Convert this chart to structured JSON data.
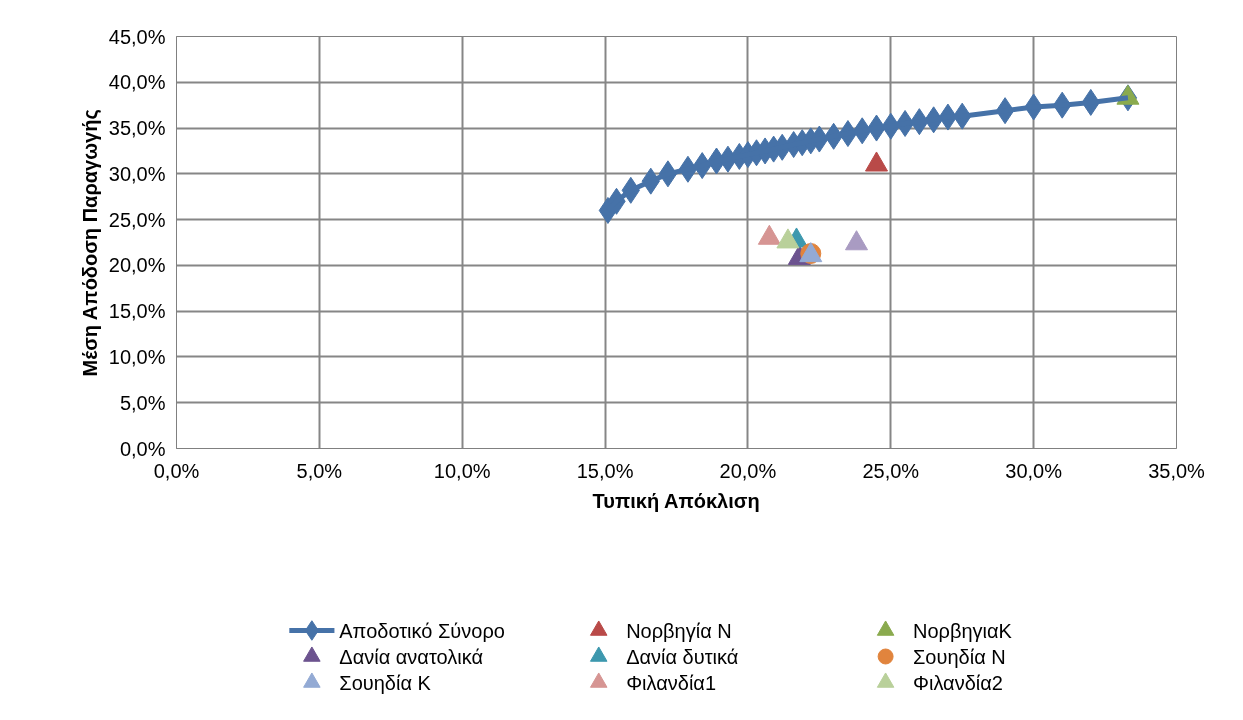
{
  "chart_data": {
    "type": "scatter",
    "xlabel": "Τυπική Απόκλιση",
    "ylabel": "Μέση Απόδοση Παραγωγής",
    "xlim": [
      0,
      35
    ],
    "ylim": [
      0,
      45
    ],
    "xticks": [
      {
        "value": 0,
        "label": "0,0%"
      },
      {
        "value": 5,
        "label": "5,0%"
      },
      {
        "value": 10,
        "label": "10,0%"
      },
      {
        "value": 15,
        "label": "15,0%"
      },
      {
        "value": 20,
        "label": "20,0%"
      },
      {
        "value": 25,
        "label": "25,0%"
      },
      {
        "value": 30,
        "label": "30,0%"
      },
      {
        "value": 35,
        "label": "35,0%"
      }
    ],
    "yticks": [
      {
        "value": 0,
        "label": "0,0%"
      },
      {
        "value": 5,
        "label": "5,0%"
      },
      {
        "value": 10,
        "label": "10,0%"
      },
      {
        "value": 15,
        "label": "15,0%"
      },
      {
        "value": 20,
        "label": "20,0%"
      },
      {
        "value": 25,
        "label": "25,0%"
      },
      {
        "value": 30,
        "label": "30,0%"
      },
      {
        "value": 35,
        "label": "35,0%"
      },
      {
        "value": 40,
        "label": "40,0%"
      },
      {
        "value": 45,
        "label": "45,0%"
      }
    ],
    "grid": true,
    "legend": "bottom",
    "series": [
      {
        "name": "Αποδοτικό Σύνορο",
        "type": "line",
        "marker": "diamond",
        "line_style": "solid",
        "color": "#4672a8",
        "x": [
          15.1,
          15.4,
          15.9,
          16.6,
          17.2,
          17.9,
          18.4,
          18.9,
          19.3,
          19.7,
          20.0,
          20.3,
          20.6,
          20.9,
          21.2,
          21.6,
          21.9,
          22.2,
          22.5,
          23.0,
          23.5,
          24.0,
          24.5,
          25.0,
          25.5,
          26.0,
          26.5,
          27.0,
          27.5,
          29.0,
          30.0,
          31.0,
          32.0,
          33.3
        ],
        "values": [
          26.0,
          27.0,
          28.2,
          29.2,
          30.0,
          30.5,
          30.9,
          31.4,
          31.6,
          31.9,
          32.1,
          32.3,
          32.5,
          32.7,
          32.9,
          33.2,
          33.4,
          33.6,
          33.8,
          34.1,
          34.4,
          34.7,
          35.0,
          35.2,
          35.5,
          35.7,
          35.9,
          36.2,
          36.3,
          36.9,
          37.3,
          37.5,
          37.8,
          38.3
        ]
      },
      {
        "name": "Νορβηγία Ν",
        "marker": "triangle",
        "color": "#b94a48",
        "x": [
          24.5
        ],
        "values": [
          31.0
        ]
      },
      {
        "name": "ΝορβηγιαΚ",
        "marker": "triangle",
        "color": "#8aaa4e",
        "x": [
          33.3
        ],
        "values": [
          38.3
        ]
      },
      {
        "name": "Δανία ανατολικά",
        "marker": "triangle",
        "color": "#6c538f",
        "x": [
          21.8
        ],
        "values": [
          20.8
        ]
      },
      {
        "name": "Δανία δυτικά",
        "marker": "triangle",
        "color": "#3d98ae",
        "x": [
          21.7
        ],
        "values": [
          22.7
        ]
      },
      {
        "name": "Σουηδία Ν",
        "marker": "circle",
        "color": "#e1843d",
        "x": [
          22.2
        ],
        "values": [
          21.3
        ]
      },
      {
        "name": "Σουηδία Κ",
        "marker": "triangle",
        "color": "#93aad4",
        "x": [
          22.2
        ],
        "values": [
          21.1
        ]
      },
      {
        "name": "Φιλανδία1",
        "marker": "triangle",
        "color": "#d69593",
        "x": [
          20.75
        ],
        "values": [
          23.0
        ]
      },
      {
        "name": "Φιλανδία2",
        "marker": "triangle",
        "color": "#b9d09a",
        "x": [
          21.4
        ],
        "values": [
          22.6
        ]
      },
      {
        "marker": "triangle",
        "color": "#a99bc2",
        "x": [
          23.8
        ],
        "values": [
          22.4
        ]
      }
    ]
  }
}
